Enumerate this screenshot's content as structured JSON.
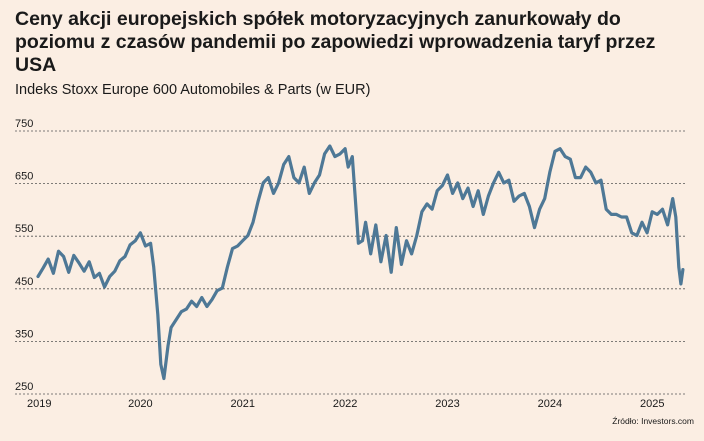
{
  "header": {
    "title": "Ceny akcji europejskich spółek motoryzacyjnych zanurkowały do poziomu z czasów pandemii po zapowiedzi wprowadzenia taryf przez USA",
    "subtitle": "Indeks Stoxx Europe 600 Automobiles & Parts (w EUR)"
  },
  "footer": {
    "source": "Źródło: Investors.com"
  },
  "colors": {
    "background": "#fbeee3",
    "line": "#4e7896"
  },
  "chart_data": {
    "type": "line",
    "title": "Ceny akcji europejskich spółek motoryzacyjnych zanurkowały do poziomu z czasów pandemii po zapowiedzi wprowadzenia taryf przez USA",
    "subtitle": "Indeks Stoxx Europe 600 Automobiles & Parts (w EUR)",
    "xlabel": "",
    "ylabel": "",
    "ylim": [
      250,
      750
    ],
    "xlim": [
      2019.0,
      2025.33
    ],
    "yticks": [
      "250",
      "350",
      "450",
      "550",
      "650",
      "750"
    ],
    "xticks": [
      "2019",
      "2020",
      "2021",
      "2022",
      "2023",
      "2024",
      "2025"
    ],
    "grid": "horizontal dashed",
    "legend": "none",
    "series": [
      {
        "x": [
          2019.0,
          2019.05,
          2019.1,
          2019.15,
          2019.2,
          2019.25,
          2019.3,
          2019.35,
          2019.4,
          2019.45,
          2019.5,
          2019.55,
          2019.6,
          2019.65,
          2019.7,
          2019.75,
          2019.8,
          2019.85,
          2019.9,
          2019.95,
          2020.0,
          2020.05,
          2020.1,
          2020.13,
          2020.17,
          2020.2,
          2020.23,
          2020.27,
          2020.3,
          2020.35,
          2020.4,
          2020.45,
          2020.5,
          2020.55,
          2020.6,
          2020.65,
          2020.7,
          2020.75,
          2020.8,
          2020.85,
          2020.9,
          2020.95,
          2021.0,
          2021.05,
          2021.1,
          2021.15,
          2021.2,
          2021.25,
          2021.3,
          2021.35,
          2021.4,
          2021.45,
          2021.5,
          2021.55,
          2021.6,
          2021.65,
          2021.7,
          2021.75,
          2021.8,
          2021.85,
          2021.9,
          2021.95,
          2022.0,
          2022.03,
          2022.07,
          2022.1,
          2022.13,
          2022.17,
          2022.2,
          2022.25,
          2022.3,
          2022.35,
          2022.4,
          2022.45,
          2022.5,
          2022.55,
          2022.6,
          2022.65,
          2022.7,
          2022.75,
          2022.8,
          2022.85,
          2022.9,
          2022.95,
          2023.0,
          2023.05,
          2023.1,
          2023.15,
          2023.2,
          2023.25,
          2023.3,
          2023.35,
          2023.4,
          2023.45,
          2023.5,
          2023.55,
          2023.6,
          2023.65,
          2023.7,
          2023.75,
          2023.8,
          2023.85,
          2023.9,
          2023.95,
          2024.0,
          2024.05,
          2024.1,
          2024.15,
          2024.2,
          2024.25,
          2024.3,
          2024.35,
          2024.4,
          2024.45,
          2024.5,
          2024.55,
          2024.6,
          2024.65,
          2024.7,
          2024.75,
          2024.8,
          2024.85,
          2024.9,
          2024.95,
          2025.0,
          2025.05,
          2025.1,
          2025.15,
          2025.2,
          2025.23,
          2025.26,
          2025.28,
          2025.3
        ],
        "values": [
          462,
          478,
          495,
          468,
          510,
          500,
          470,
          502,
          488,
          472,
          490,
          460,
          468,
          442,
          462,
          472,
          492,
          500,
          522,
          530,
          545,
          520,
          525,
          480,
          390,
          295,
          268,
          330,
          365,
          380,
          395,
          400,
          415,
          405,
          422,
          405,
          418,
          435,
          440,
          480,
          515,
          520,
          530,
          540,
          565,
          605,
          640,
          650,
          620,
          640,
          675,
          690,
          650,
          640,
          670,
          620,
          640,
          655,
          695,
          710,
          690,
          695,
          705,
          670,
          690,
          610,
          525,
          530,
          565,
          505,
          560,
          490,
          540,
          470,
          555,
          485,
          530,
          505,
          540,
          585,
          600,
          590,
          625,
          635,
          655,
          620,
          640,
          610,
          630,
          595,
          625,
          580,
          615,
          640,
          660,
          640,
          645,
          605,
          615,
          620,
          595,
          555,
          590,
          610,
          660,
          700,
          705,
          690,
          685,
          650,
          650,
          670,
          660,
          640,
          645,
          590,
          580,
          580,
          575,
          575,
          545,
          540,
          565,
          545,
          585,
          580,
          590,
          560,
          610,
          575,
          480,
          448,
          475
        ]
      }
    ]
  }
}
